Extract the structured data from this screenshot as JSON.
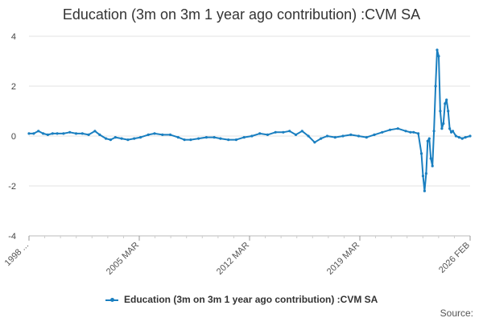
{
  "chart_data": {
    "type": "line",
    "title": "Education (3m on 3m 1 year ago contribution) :CVM SA",
    "ylim": [
      -4,
      4
    ],
    "yticks": [
      -4,
      -2,
      0,
      2,
      4
    ],
    "xticks": [
      "1998 ...",
      "2005 MAR",
      "2012 MAR",
      "2019 MAR",
      "2026 FEB"
    ],
    "xrange": [
      1998.0,
      2026.1
    ],
    "grid": true,
    "legend_position": "bottom",
    "series": [
      {
        "name": "Education (3m on 3m 1 year ago contribution) :CVM SA",
        "color": "#1a7fc0",
        "points": [
          [
            1998.0,
            0.1
          ],
          [
            1998.3,
            0.1
          ],
          [
            1998.6,
            0.2
          ],
          [
            1998.9,
            0.1
          ],
          [
            1999.2,
            0.05
          ],
          [
            1999.5,
            0.1
          ],
          [
            1999.8,
            0.1
          ],
          [
            2000.2,
            0.1
          ],
          [
            2000.6,
            0.15
          ],
          [
            2001.0,
            0.1
          ],
          [
            2001.4,
            0.1
          ],
          [
            2001.8,
            0.05
          ],
          [
            2002.2,
            0.2
          ],
          [
            2002.5,
            0.05
          ],
          [
            2002.9,
            -0.1
          ],
          [
            2003.2,
            -0.15
          ],
          [
            2003.5,
            -0.05
          ],
          [
            2003.9,
            -0.1
          ],
          [
            2004.3,
            -0.15
          ],
          [
            2004.7,
            -0.1
          ],
          [
            2005.1,
            -0.05
          ],
          [
            2005.6,
            0.05
          ],
          [
            2006.0,
            0.1
          ],
          [
            2006.5,
            0.05
          ],
          [
            2007.0,
            0.05
          ],
          [
            2007.5,
            -0.05
          ],
          [
            2007.9,
            -0.15
          ],
          [
            2008.3,
            -0.15
          ],
          [
            2008.8,
            -0.1
          ],
          [
            2009.3,
            -0.05
          ],
          [
            2009.8,
            -0.05
          ],
          [
            2010.2,
            -0.1
          ],
          [
            2010.7,
            -0.15
          ],
          [
            2011.2,
            -0.15
          ],
          [
            2011.7,
            -0.05
          ],
          [
            2012.2,
            0.0
          ],
          [
            2012.7,
            0.1
          ],
          [
            2013.2,
            0.05
          ],
          [
            2013.7,
            0.15
          ],
          [
            2014.2,
            0.15
          ],
          [
            2014.6,
            0.2
          ],
          [
            2015.0,
            0.05
          ],
          [
            2015.4,
            0.2
          ],
          [
            2015.8,
            0.0
          ],
          [
            2016.2,
            -0.25
          ],
          [
            2016.6,
            -0.1
          ],
          [
            2017.0,
            0.0
          ],
          [
            2017.5,
            -0.05
          ],
          [
            2018.0,
            0.0
          ],
          [
            2018.5,
            0.05
          ],
          [
            2019.0,
            0.0
          ],
          [
            2019.5,
            -0.05
          ],
          [
            2020.0,
            0.05
          ],
          [
            2020.5,
            0.15
          ],
          [
            2021.0,
            0.25
          ],
          [
            2021.5,
            0.3
          ],
          [
            2022.0,
            0.2
          ],
          [
            2022.3,
            0.15
          ],
          [
            2022.5,
            0.15
          ],
          [
            2022.8,
            0.1
          ],
          [
            2023.0,
            -0.7
          ],
          [
            2023.1,
            -1.6
          ],
          [
            2023.2,
            -2.2
          ],
          [
            2023.3,
            -1.5
          ],
          [
            2023.4,
            -0.2
          ],
          [
            2023.5,
            -0.1
          ],
          [
            2023.6,
            -0.9
          ],
          [
            2023.7,
            -1.2
          ],
          [
            2023.8,
            0.2
          ],
          [
            2023.9,
            2.0
          ],
          [
            2024.0,
            3.45
          ],
          [
            2024.1,
            3.2
          ],
          [
            2024.2,
            1.0
          ],
          [
            2024.3,
            0.3
          ],
          [
            2024.4,
            0.5
          ],
          [
            2024.5,
            1.3
          ],
          [
            2024.6,
            1.45
          ],
          [
            2024.7,
            1.0
          ],
          [
            2024.8,
            0.3
          ],
          [
            2024.9,
            0.15
          ],
          [
            2025.0,
            0.2
          ],
          [
            2025.2,
            0.0
          ],
          [
            2025.4,
            -0.05
          ],
          [
            2025.6,
            -0.1
          ],
          [
            2025.8,
            -0.05
          ],
          [
            2026.1,
            0.0
          ]
        ]
      }
    ],
    "legend_label": "Education (3m on 3m 1 year ago contribution) :CVM SA",
    "source_label": "Source:"
  }
}
